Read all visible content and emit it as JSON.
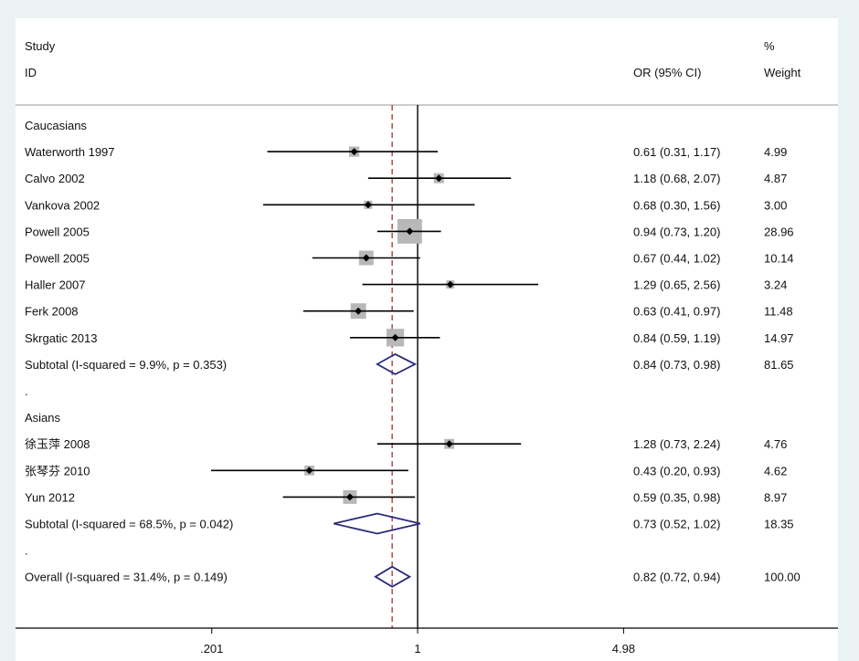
{
  "chart_data": {
    "type": "forest",
    "header": {
      "study_line1": "Study",
      "study_line2": "ID",
      "or_label": "OR (95% CI)",
      "weight_line1": "%",
      "weight_line2": "Weight"
    },
    "x_axis": {
      "scale": "log",
      "ticks": [
        {
          "value": 0.201,
          "label": ".201"
        },
        {
          "value": 1,
          "label": "1"
        },
        {
          "value": 4.98,
          "label": "4.98"
        }
      ],
      "null_line": 1,
      "overall_line": 0.82
    },
    "rows": [
      {
        "kind": "group",
        "label": "Caucasians"
      },
      {
        "kind": "study",
        "label": "Waterworth 1997",
        "or": 0.61,
        "lo": 0.31,
        "hi": 1.17,
        "ci_text": "0.61 (0.31, 1.17)",
        "weight": "4.99"
      },
      {
        "kind": "study",
        "label": "Calvo 2002",
        "or": 1.18,
        "lo": 0.68,
        "hi": 2.07,
        "ci_text": "1.18 (0.68, 2.07)",
        "weight": "4.87"
      },
      {
        "kind": "study",
        "label": "Vankova 2002",
        "or": 0.68,
        "lo": 0.3,
        "hi": 1.56,
        "ci_text": "0.68 (0.30, 1.56)",
        "weight": "3.00"
      },
      {
        "kind": "study",
        "label": "Powell 2005",
        "or": 0.94,
        "lo": 0.73,
        "hi": 1.2,
        "ci_text": "0.94 (0.73, 1.20)",
        "weight": "28.96"
      },
      {
        "kind": "study",
        "label": "Powell 2005",
        "or": 0.67,
        "lo": 0.44,
        "hi": 1.02,
        "ci_text": "0.67 (0.44, 1.02)",
        "weight": "10.14"
      },
      {
        "kind": "study",
        "label": "Haller 2007",
        "or": 1.29,
        "lo": 0.65,
        "hi": 2.56,
        "ci_text": "1.29 (0.65, 2.56)",
        "weight": "3.24"
      },
      {
        "kind": "study",
        "label": "Ferk 2008",
        "or": 0.63,
        "lo": 0.41,
        "hi": 0.97,
        "ci_text": "0.63 (0.41, 0.97)",
        "weight": "11.48"
      },
      {
        "kind": "study",
        "label": "Skrgatic 2013",
        "or": 0.84,
        "lo": 0.59,
        "hi": 1.19,
        "ci_text": "0.84 (0.59, 1.19)",
        "weight": "14.97"
      },
      {
        "kind": "subtotal",
        "label": "Subtotal  (I-squared = 9.9%, p = 0.353)",
        "or": 0.84,
        "lo": 0.73,
        "hi": 0.98,
        "ci_text": "0.84 (0.73, 0.98)",
        "weight": "81.65"
      },
      {
        "kind": "blank",
        "label": "."
      },
      {
        "kind": "group",
        "label": "Asians"
      },
      {
        "kind": "study",
        "label": "徐玉萍 2008",
        "or": 1.28,
        "lo": 0.73,
        "hi": 2.24,
        "ci_text": "1.28 (0.73, 2.24)",
        "weight": "4.76"
      },
      {
        "kind": "study",
        "label": "张琴芬 2010",
        "or": 0.43,
        "lo": 0.2,
        "hi": 0.93,
        "ci_text": "0.43 (0.20, 0.93)",
        "weight": "4.62"
      },
      {
        "kind": "study",
        "label": "Yun 2012",
        "or": 0.59,
        "lo": 0.35,
        "hi": 0.98,
        "ci_text": "0.59 (0.35, 0.98)",
        "weight": "8.97"
      },
      {
        "kind": "subtotal",
        "label": "Subtotal  (I-squared = 68.5%, p = 0.042)",
        "or": 0.73,
        "lo": 0.52,
        "hi": 1.02,
        "ci_text": "0.73 (0.52, 1.02)",
        "weight": "18.35"
      },
      {
        "kind": "blank",
        "label": "."
      },
      {
        "kind": "overall",
        "label": "Overall  (I-squared = 31.4%, p = 0.149)",
        "or": 0.82,
        "lo": 0.72,
        "hi": 0.94,
        "ci_text": "0.82 (0.72, 0.94)",
        "weight": "100.00"
      }
    ],
    "colors": {
      "ci_line": "#000000",
      "weight_box": "#b8b8b8",
      "point": "#000000",
      "diamond": "#2a2a7a",
      "overall_line": "#a03030",
      "null_line": "#000000",
      "background": "#eaf2f3"
    }
  }
}
